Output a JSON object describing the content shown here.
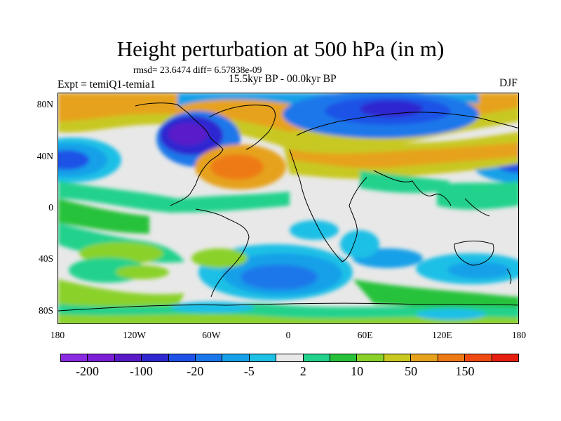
{
  "title": "Height perturbation at 500 hPa (in m)",
  "stats": "rmsd= 23.6474 diff= 6.57838e-09",
  "experiment": "Expt = temiQ1-temia1",
  "period": "15.5kyr BP - 00.0kyr BP",
  "season": "DJF",
  "lat_labels": [
    "80N",
    "40N",
    "0",
    "40S",
    "80S"
  ],
  "lat_values": [
    80,
    40,
    0,
    -40,
    -80
  ],
  "lon_labels": [
    "180",
    "120W",
    "60W",
    "0",
    "60E",
    "120E",
    "180"
  ],
  "lon_values": [
    -180,
    -120,
    -60,
    0,
    60,
    120,
    180
  ],
  "colorbar": {
    "colors": [
      "#8a2be2",
      "#7a1fd6",
      "#5a1ac8",
      "#2f28d0",
      "#1e52e6",
      "#1a78ea",
      "#16a0e8",
      "#1ec0e6",
      "#e8e8e8",
      "#22d28c",
      "#28c23a",
      "#8ad22a",
      "#c8c820",
      "#e6a21c",
      "#ee7a16",
      "#ee4a12",
      "#e61e10"
    ],
    "labels": [
      "-200",
      "-100",
      "-20",
      "-5",
      "2",
      "10",
      "50",
      "150"
    ],
    "label_slots": [
      1,
      3,
      5,
      7,
      9,
      11,
      13,
      15
    ]
  }
}
